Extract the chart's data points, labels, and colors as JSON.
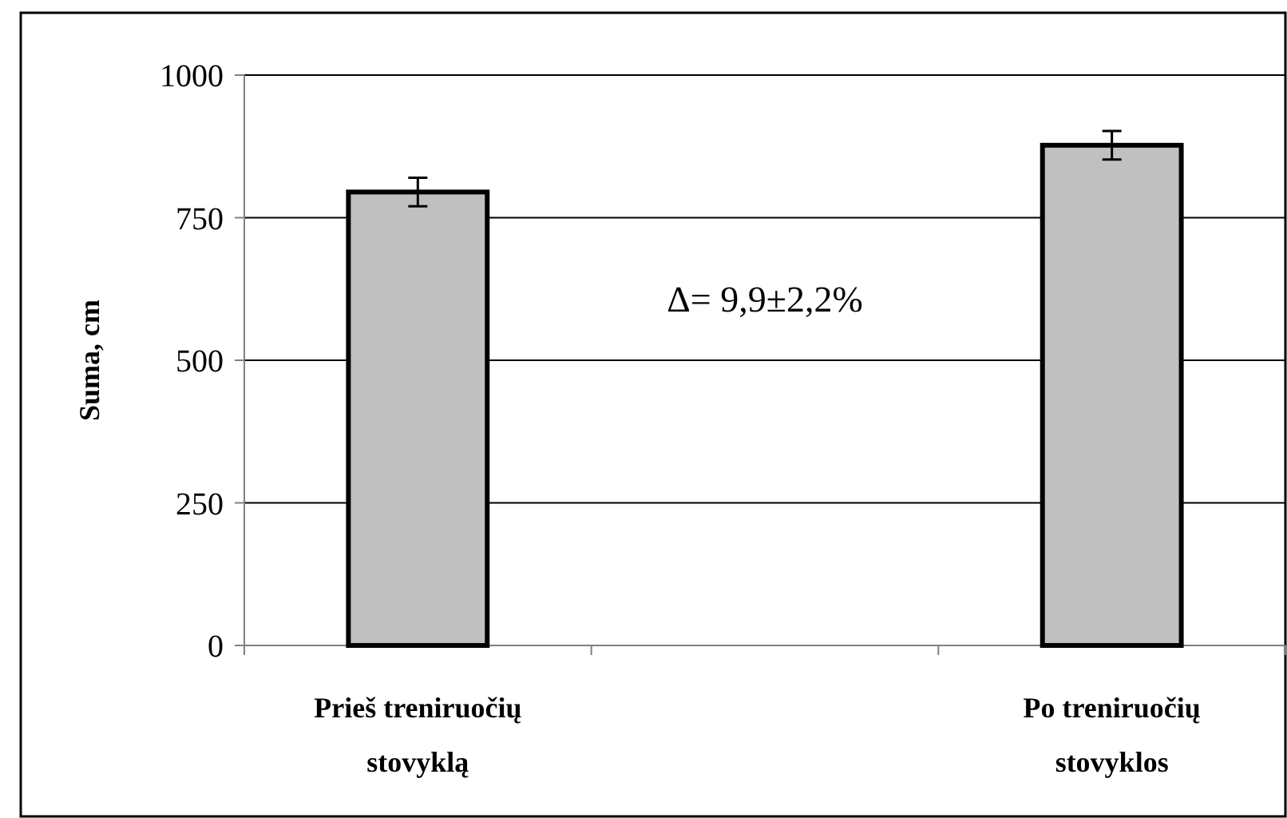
{
  "chart_data": {
    "type": "bar",
    "ylabel": "Suma,  cm",
    "categories": [
      "Prieš treniruočių stovyklą",
      null,
      "Po treniruočių stovyklos"
    ],
    "values": [
      795,
      null,
      877
    ],
    "errors": [
      25,
      null,
      25
    ],
    "color": "#c0c0c0",
    "ylim": [
      0,
      1000
    ],
    "yticks": [
      0,
      250,
      500,
      750,
      1000
    ],
    "grid": "y",
    "annotations": [
      "Δ= 9,9±2,2%"
    ]
  }
}
